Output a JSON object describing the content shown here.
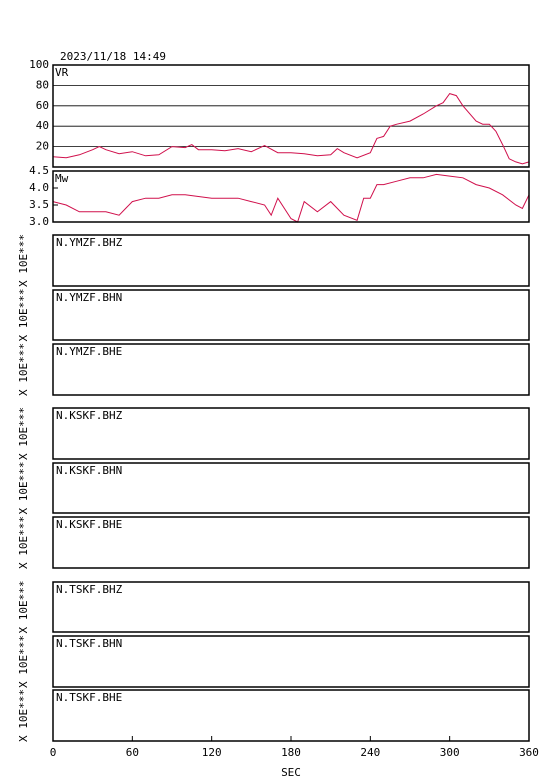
{
  "chart_data": [
    {
      "type": "line",
      "title": "2023/11/18 14:49",
      "x": [
        0,
        10,
        20,
        30,
        35,
        40,
        50,
        60,
        70,
        80,
        90,
        100,
        105,
        110,
        120,
        130,
        140,
        150,
        160,
        170,
        180,
        190,
        200,
        210,
        215,
        220,
        230,
        240,
        245,
        250,
        255,
        260,
        270,
        280,
        290,
        295,
        300,
        305,
        310,
        320,
        325,
        330,
        335,
        340,
        345,
        350,
        355,
        360
      ],
      "series": [
        {
          "name": "VR",
          "color": "#d0104c",
          "values": [
            10,
            9,
            12,
            17,
            20,
            17,
            13,
            15,
            11,
            12,
            20,
            19,
            22,
            17,
            17,
            16,
            18,
            15,
            21,
            14,
            14,
            13,
            11,
            12,
            18,
            14,
            9,
            14,
            28,
            30,
            40,
            42,
            45,
            52,
            60,
            63,
            72,
            70,
            60,
            45,
            42,
            42,
            35,
            22,
            8,
            5,
            3,
            5
          ]
        }
      ],
      "xlim": [
        0,
        360
      ],
      "ylim": [
        0,
        100
      ],
      "yticks": [
        20,
        40,
        60,
        80,
        100
      ],
      "grid": true
    },
    {
      "type": "line",
      "x": [
        0,
        10,
        20,
        30,
        40,
        50,
        60,
        70,
        80,
        90,
        100,
        110,
        120,
        130,
        140,
        150,
        160,
        165,
        170,
        180,
        185,
        190,
        200,
        210,
        220,
        230,
        235,
        240,
        245,
        250,
        260,
        270,
        280,
        290,
        300,
        310,
        320,
        330,
        340,
        350,
        355,
        360
      ],
      "series": [
        {
          "name": "Mw",
          "color": "#d0104c",
          "values": [
            3.6,
            3.5,
            3.3,
            3.3,
            3.3,
            3.2,
            3.6,
            3.7,
            3.7,
            3.8,
            3.8,
            3.75,
            3.7,
            3.7,
            3.7,
            3.6,
            3.5,
            3.2,
            3.7,
            3.1,
            3.0,
            3.6,
            3.3,
            3.6,
            3.2,
            3.05,
            3.7,
            3.7,
            4.1,
            4.1,
            4.2,
            4.3,
            4.3,
            4.4,
            4.35,
            4.3,
            4.1,
            4.0,
            3.8,
            3.5,
            3.4,
            3.8
          ]
        }
      ],
      "xlim": [
        0,
        360
      ],
      "ylim": [
        3,
        4.5
      ],
      "yticks": [
        {
          "value": 3,
          "label": "3.0"
        },
        3.5,
        {
          "value": 4,
          "label": "4.0"
        },
        4.5
      ],
      "grid": false
    },
    {
      "type": "line",
      "title": "N.YMZF.BHZ",
      "ylabel": "X 10E***",
      "series": []
    },
    {
      "type": "line",
      "title": "N.YMZF.BHN",
      "ylabel": "X 10E***",
      "series": []
    },
    {
      "type": "line",
      "title": "N.YMZF.BHE",
      "ylabel": "X 10E***",
      "series": []
    },
    {
      "type": "line",
      "title": "N.KSKF.BHZ",
      "ylabel": "X 10E***",
      "series": []
    },
    {
      "type": "line",
      "title": "N.KSKF.BHN",
      "ylabel": "X 10E***",
      "series": []
    },
    {
      "type": "line",
      "title": "N.KSKF.BHE",
      "ylabel": "X 10E***",
      "series": []
    },
    {
      "type": "line",
      "title": "N.TSKF.BHZ",
      "ylabel": "X 10E***",
      "series": []
    },
    {
      "type": "line",
      "title": "N.TSKF.BHN",
      "ylabel": "X 10E***",
      "series": []
    },
    {
      "type": "line",
      "title": "N.TSKF.BHE",
      "ylabel": "X 10E***",
      "series": [],
      "xlabel": "SEC",
      "xlim": [
        0,
        360
      ],
      "xticks": [
        0,
        60,
        120,
        180,
        240,
        300,
        360
      ]
    }
  ]
}
